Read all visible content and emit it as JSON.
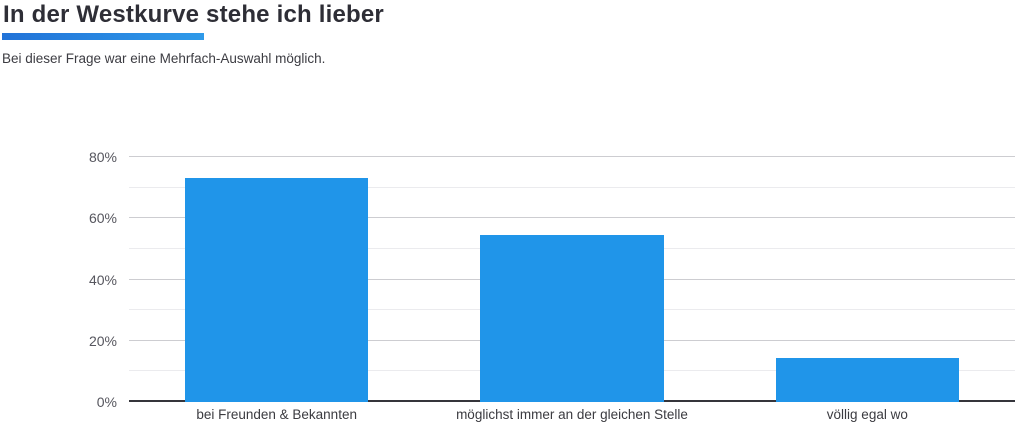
{
  "header": {
    "title": "In der Westkurve stehe ich lieber",
    "subtitle": "Bei dieser Frage war eine Mehrfach-Auswahl möglich.",
    "accent_gradient_start": "#2273d8",
    "accent_gradient_end": "#2f9ae9"
  },
  "chart_data": {
    "type": "bar",
    "title": "In der Westkurve stehe ich lieber",
    "subtitle": "Bei dieser Frage war eine Mehrfach-Auswahl möglich.",
    "categories": [
      "bei Freunden & Bekannten",
      "möglichst immer an der gleichen Stelle",
      "völlig egal wo"
    ],
    "values": [
      73,
      54.5,
      14.5
    ],
    "unit": "%",
    "xlabel": "",
    "ylabel": "",
    "ylim": [
      0,
      80
    ],
    "y_ticks": [
      {
        "value": 0,
        "label": "0%"
      },
      {
        "value": 20,
        "label": "20%"
      },
      {
        "value": 40,
        "label": "40%"
      },
      {
        "value": 60,
        "label": "60%"
      },
      {
        "value": 80,
        "label": "80%"
      }
    ],
    "minor_grid_step": 10,
    "grid": "on",
    "legend": "none",
    "bar_color": "#2095e9",
    "major_grid_color": "#cdcdd1",
    "minor_grid_color": "#ebebee"
  }
}
